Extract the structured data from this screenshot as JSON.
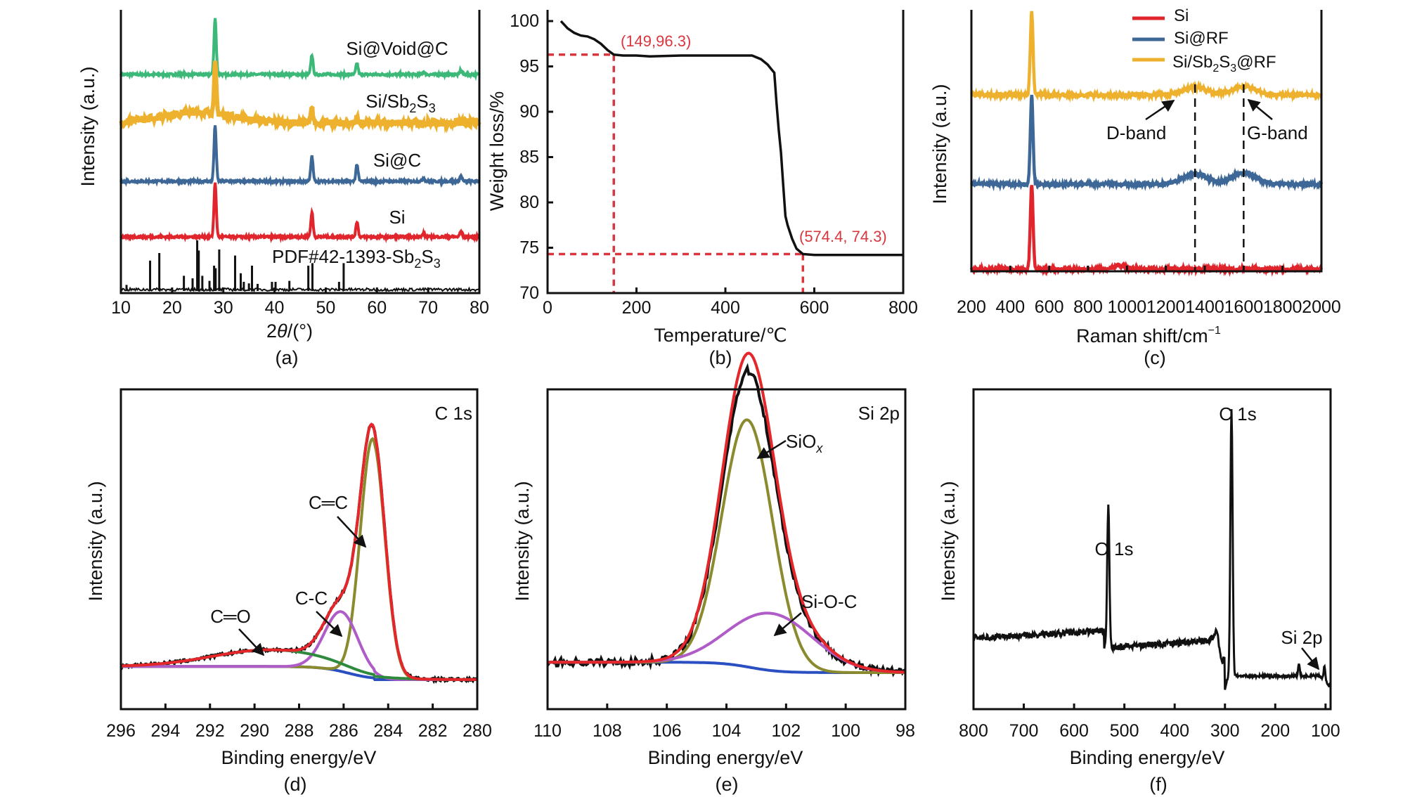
{
  "colors": {
    "red": "#e0262c",
    "blue": "#3c6796",
    "gold": "#eeb12e",
    "green": "#3cb878",
    "black": "#111111",
    "annotation_red": "#d9363e",
    "fit_red": "#e5262a",
    "fit_olive": "#8a8a2e",
    "fit_magenta": "#b05cc8",
    "fit_green": "#2e8b3e",
    "fit_blue": "#2a4fc0"
  },
  "chart_data": [
    {
      "id": "a",
      "type": "line",
      "panel_label": "(a)",
      "title": "",
      "xlabel": "2θ/(°)",
      "ylabel": "Intensity (a.u.)",
      "xlim": [
        10,
        80
      ],
      "xticks": [
        "10",
        "20",
        "30",
        "40",
        "50",
        "60",
        "70",
        "80"
      ],
      "grid": false,
      "series": [
        {
          "name": "Si@Void@C",
          "color_key": "green",
          "offset": 4,
          "peaks": [
            [
              28.4,
              1.0
            ],
            [
              47.3,
              0.35
            ],
            [
              56.1,
              0.2
            ],
            [
              69.1,
              0.05
            ],
            [
              76.4,
              0.08
            ]
          ]
        },
        {
          "name": "Si/Sb2S3",
          "color_key": "gold",
          "offset": 3,
          "broad_hump": {
            "center": 25,
            "height": 0.2
          },
          "peaks": [
            [
              28.4,
              0.9
            ],
            [
              47.3,
              0.25
            ],
            [
              56.1,
              0.1
            ]
          ]
        },
        {
          "name": "Si@C",
          "color_key": "blue",
          "offset": 2,
          "peaks": [
            [
              28.4,
              1.0
            ],
            [
              47.3,
              0.45
            ],
            [
              56.1,
              0.3
            ],
            [
              69.1,
              0.06
            ],
            [
              76.4,
              0.1
            ]
          ]
        },
        {
          "name": "Si",
          "color_key": "red",
          "offset": 1,
          "peaks": [
            [
              28.4,
              1.0
            ],
            [
              47.3,
              0.45
            ],
            [
              56.1,
              0.28
            ],
            [
              69.1,
              0.06
            ],
            [
              76.4,
              0.1
            ]
          ]
        }
      ],
      "reference": {
        "name": "PDF#42-1393-Sb2S3",
        "sticks": [
          [
            11.1,
            0.12
          ],
          [
            15.7,
            0.6
          ],
          [
            17.5,
            0.75
          ],
          [
            22.3,
            0.3
          ],
          [
            24.0,
            0.25
          ],
          [
            24.9,
            1.0
          ],
          [
            25.2,
            0.8
          ],
          [
            25.9,
            0.3
          ],
          [
            27.3,
            0.2
          ],
          [
            28.2,
            0.5
          ],
          [
            28.5,
            0.45
          ],
          [
            29.2,
            0.82
          ],
          [
            32.3,
            0.7
          ],
          [
            33.4,
            0.35
          ],
          [
            34.0,
            0.18
          ],
          [
            35.0,
            0.15
          ],
          [
            35.6,
            0.5
          ],
          [
            36.7,
            0.14
          ],
          [
            39.5,
            0.18
          ],
          [
            40.2,
            0.18
          ],
          [
            42.9,
            0.2
          ],
          [
            46.6,
            0.5
          ],
          [
            47.4,
            0.55
          ],
          [
            52.6,
            0.18
          ],
          [
            53.5,
            0.55
          ]
        ]
      },
      "labels": [
        "Si@Void@C",
        "Si/Sb₂S₃",
        "Si@C",
        "Si",
        "PDF#42-1393-Sb₂S₃"
      ]
    },
    {
      "id": "b",
      "type": "line",
      "panel_label": "(b)",
      "xlabel": "Temperature/℃",
      "ylabel": "Weight loss/%",
      "xlim": [
        0,
        800
      ],
      "ylim": [
        70,
        100
      ],
      "xticks": [
        "0",
        "200",
        "400",
        "600",
        "800"
      ],
      "yticks": [
        "70",
        "75",
        "80",
        "85",
        "90",
        "95",
        "100"
      ],
      "grid": false,
      "series": [
        {
          "name": "TGA",
          "color_key": "black",
          "x": [
            30,
            45,
            60,
            75,
            90,
            105,
            120,
            135,
            149,
            170,
            200,
            230,
            300,
            400,
            460,
            480,
            495,
            505,
            510,
            515,
            520,
            525,
            530,
            535,
            540,
            550,
            560,
            574.4,
            600,
            700,
            800
          ],
          "y": [
            100,
            99.2,
            98.7,
            98.4,
            98.3,
            98.0,
            97.5,
            96.8,
            96.3,
            96.2,
            96.2,
            96.1,
            96.2,
            96.2,
            96.2,
            95.8,
            95.2,
            94.6,
            94.3,
            91.0,
            88.0,
            85.5,
            82.0,
            78.5,
            77.5,
            76.0,
            74.9,
            74.3,
            74.2,
            74.2,
            74.2
          ]
        }
      ],
      "annotations": [
        {
          "text": "(149,96.3)",
          "x": 149,
          "y": 96.3
        },
        {
          "text": "(574.4, 74.3)",
          "x": 574.4,
          "y": 74.3
        }
      ]
    },
    {
      "id": "c",
      "type": "line",
      "panel_label": "(c)",
      "xlabel": "Raman shift/cm⁻¹",
      "ylabel": "Intensity (a.u.)",
      "xlim": [
        200,
        2000
      ],
      "xticks": [
        "200",
        "400",
        "600",
        "800",
        "1000",
        "1200",
        "1400",
        "1600",
        "1800",
        "2000"
      ],
      "legend": {
        "placement": "top-center",
        "entries": [
          "Si",
          "Si@RF",
          "Si/Sb₂S₃@RF"
        ]
      },
      "grid": false,
      "series": [
        {
          "name": "Si",
          "color_key": "red",
          "offset": 0,
          "peaks": [
            [
              510,
              1.0
            ],
            [
              960,
              0.04
            ]
          ]
        },
        {
          "name": "Si@RF",
          "color_key": "blue",
          "offset": 1,
          "peaks": [
            [
              510,
              1.0
            ],
            [
              1350,
              0.12
            ],
            [
              1600,
              0.13
            ]
          ]
        },
        {
          "name": "Si/Sb2S3@RF",
          "color_key": "gold",
          "offset": 2,
          "peaks": [
            [
              510,
              1.0
            ],
            [
              1350,
              0.09
            ],
            [
              1600,
              0.1
            ]
          ]
        }
      ],
      "vlines": [
        1350,
        1600
      ],
      "annotations": [
        {
          "text": "D-band",
          "x": 1350
        },
        {
          "text": "G-band",
          "x": 1600
        }
      ]
    },
    {
      "id": "d",
      "type": "line",
      "panel_label": "(d)",
      "title": "C 1s",
      "xlabel": "Binding energy/eV",
      "ylabel": "Intensity (a.u.)",
      "xlim": [
        296,
        280
      ],
      "xticks": [
        "296",
        "294",
        "292",
        "290",
        "288",
        "286",
        "284",
        "282",
        "280"
      ],
      "grid": false,
      "components": [
        {
          "name": "C=C",
          "center": 284.7,
          "height": 1.0,
          "width": 0.55,
          "color_key": "fit_olive"
        },
        {
          "name": "C-C",
          "center": 286.1,
          "height": 0.25,
          "width": 0.75,
          "color_key": "fit_magenta"
        },
        {
          "name": "C=O",
          "center": 289.3,
          "height": 0.07,
          "width": 2.6,
          "color_key": "fit_green"
        }
      ],
      "annotations": [
        "C 1s",
        "C=C",
        "C-C",
        "C=O"
      ]
    },
    {
      "id": "e",
      "type": "line",
      "panel_label": "(e)",
      "title": "Si 2p",
      "xlabel": "Binding energy/eV",
      "ylabel": "Intensity (a.u.)",
      "xlim": [
        110,
        98
      ],
      "xticks": [
        "110",
        "108",
        "106",
        "104",
        "102",
        "100",
        "98"
      ],
      "grid": false,
      "components": [
        {
          "name": "SiOx",
          "center": 103.3,
          "height": 0.95,
          "width": 0.85,
          "color_key": "fit_olive"
        },
        {
          "name": "Si-O-C",
          "center": 102.5,
          "height": 0.22,
          "width": 1.4,
          "color_key": "fit_magenta"
        }
      ],
      "annotations": [
        "Si 2p",
        "SiOx",
        "Si-O-C"
      ]
    },
    {
      "id": "f",
      "type": "line",
      "panel_label": "(f)",
      "xlabel": "Binding energy/eV",
      "ylabel": "Intensity (a.u.)",
      "xlim": [
        800,
        90
      ],
      "xticks": [
        "800",
        "700",
        "600",
        "500",
        "400",
        "300",
        "200",
        "100"
      ],
      "grid": false,
      "peaks": [
        {
          "name": "O 1s",
          "x": 532
        },
        {
          "name": "C 1s",
          "x": 285
        },
        {
          "name": "Si 2p",
          "x": 103
        }
      ],
      "annotations": [
        "C 1s",
        "O 1s",
        "Si 2p"
      ]
    }
  ],
  "text": {
    "a": {
      "l1": "Si@Void@C",
      "l2": "Si/Sb",
      "l2s1": "2",
      "l2b": "S",
      "l2s2": "3",
      "l3": "Si@C",
      "l4": "Si",
      "ref": "PDF#42-1393-Sb",
      "refs1": "2",
      "refb": "S",
      "refs2": "3",
      "ylabel": "Intensity (a.u.)",
      "xlabel_pre": "2",
      "xlabel_theta": "θ",
      "xlabel_post": "/(°)",
      "panel": "(a)"
    },
    "b": {
      "ylabel": "Weight loss/%",
      "xlabel": "Temperature/℃",
      "panel": "(b)",
      "ann1": "(149,96.3)",
      "ann2": "(574.4, 74.3)"
    },
    "c": {
      "ylabel": "Intensity (a.u.)",
      "xlabel": "Raman shift/cm",
      "xlabel_sup": "−1",
      "panel": "(c)",
      "leg1": "Si",
      "leg2": "Si@RF",
      "leg3a": "Si/Sb",
      "leg3s1": "2",
      "leg3b": "S",
      "leg3s2": "3",
      "leg3c": "@RF",
      "dband": "D-band",
      "gband": "G-band"
    },
    "d": {
      "ylabel": "Intensity (a.u.)",
      "xlabel": "Binding energy/eV",
      "panel": "(d)",
      "title": "C 1s",
      "cc2": "C═C",
      "cc": "C-C",
      "co": "C═O"
    },
    "e": {
      "ylabel": "Intensity (a.u.)",
      "xlabel": "Binding energy/eV",
      "panel": "(e)",
      "title": "Si 2p",
      "siox": "SiO",
      "siox_sub": "x",
      "sioc": "Si-O-C"
    },
    "f": {
      "ylabel": "Intensity (a.u.)",
      "xlabel": "Binding energy/eV",
      "panel": "(f)",
      "c1s": "C 1s",
      "o1s": "O 1s",
      "si2p": "Si 2p"
    }
  }
}
